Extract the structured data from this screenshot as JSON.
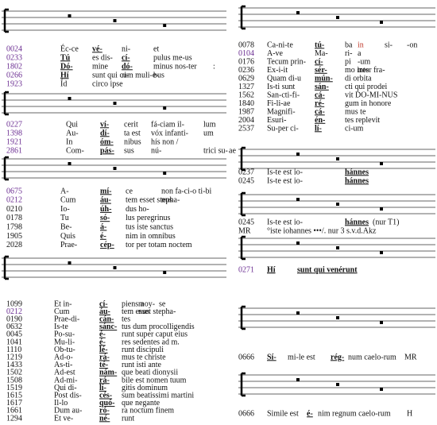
{
  "columns": [
    {
      "blocks": [
        {
          "rows": [
            {
              "num": "0024",
              "color": "#6a2c91",
              "parts": [
                "Éc-ce",
                "vé-",
                "ni-",
                "et"
              ]
            },
            {
              "num": "0233",
              "color": "#6a2c91",
              "parts": [
                "Tú",
                "es dis-",
                "cí-",
                "pulus me-us"
              ]
            },
            {
              "num": "1802",
              "color": "#6a2c91",
              "parts": [
                "Dó-",
                "mine",
                "dó-",
                "minus nos-ter",
                ":"
              ]
            },
            {
              "num": "0266",
              "color": "#6a2c91",
              "parts": [
                "Hí",
                "sunt qui cum muli-e-",
                "ri-",
                "bus"
              ]
            },
            {
              "num": "1923",
              "color": "#6a2c91",
              "parts": [
                "Íd",
                "circo ipse"
              ]
            }
          ]
        },
        {
          "rows": [
            {
              "num": "0227",
              "color": "#6a2c91",
              "parts": [
                "Qui",
                "ví-",
                "cerit",
                "fá-ciam il-",
                "lum"
              ]
            },
            {
              "num": "1398",
              "color": "#6a2c91",
              "parts": [
                "Au-",
                "dí-",
                "ta est",
                "vóx infanti-",
                "um"
              ]
            },
            {
              "num": "1921",
              "color": "#6a2c91",
              "parts": [
                "In",
                "óm-",
                "nibus",
                "hís non /"
              ]
            },
            {
              "num": "2861",
              "color": "#6a2c91",
              "parts": [
                "Com-",
                "pás-",
                "sus",
                "nú-",
                "trici su-",
                "ae"
              ]
            }
          ]
        },
        {
          "rows": [
            {
              "num": "0675",
              "color": "#6a2c91",
              "parts": [
                "A-",
                "mí-",
                "ce",
                "non fa-ci-o ti-bi"
              ]
            },
            {
              "num": "0212",
              "color": "#6a2c91",
              "parts": [
                "Cum",
                "áu-",
                "tem esset stepha-",
                "nus"
              ]
            },
            {
              "num": "0210",
              "parts": [
                "Io-",
                "úh-",
                "dus ho-"
              ]
            },
            {
              "num": "0178",
              "parts": [
                "Tu",
                "só-",
                "lus peregrinus"
              ]
            },
            {
              "num": "1798",
              "parts": [
                "Be-",
                "á-",
                "tus iste sanctus"
              ]
            },
            {
              "num": "1905",
              "parts": [
                "Quis",
                "é-",
                "nim in omnibus"
              ]
            },
            {
              "num": "2028",
              "parts": [
                "Prae-",
                "cép-",
                "tor per totam noctem"
              ]
            }
          ]
        },
        {
          "rows": [
            {
              "num": "1099",
              "parts": [
                "Et in-",
                "cí-",
                "piens a",
                "moy-",
                "se"
              ]
            },
            {
              "num": "0212",
              "color": "#6a2c91",
              "parts": [
                "Cum",
                "áu-",
                "tem esset stepha-",
                "nus"
              ]
            },
            {
              "num": "0190",
              "parts": [
                "Prae-di-",
                "cán-",
                "tes"
              ]
            },
            {
              "num": "0632",
              "parts": [
                "Is-te",
                "sánc-",
                "tus dum procolligendis"
              ]
            },
            {
              "num": "0045",
              "parts": [
                "Po-su-",
                "é-",
                "runt super caput eius"
              ]
            },
            {
              "num": "1041",
              "parts": [
                "Mu-li-",
                "é-",
                "res sedentes ad m."
              ]
            },
            {
              "num": "1110",
              "parts": [
                "Ob-tu-",
                "lé-",
                "runt discipuli"
              ]
            },
            {
              "num": "1219",
              "parts": [
                "Ad-o-",
                "rá-",
                "mus te christe"
              ]
            },
            {
              "num": "1433",
              "parts": [
                "As-ti-",
                "té-",
                "runt isti ante"
              ]
            },
            {
              "num": "1502",
              "parts": [
                "Ad-est",
                "nám-",
                "que beati dionysii"
              ]
            },
            {
              "num": "1508",
              "parts": [
                "Ad-mi-",
                "rá-",
                "bile est nomen tuum"
              ]
            },
            {
              "num": "1519",
              "parts": [
                "Qui di-",
                "lí-",
                "gitis dominum"
              ]
            },
            {
              "num": "1615",
              "parts": [
                "Post dis-",
                "cés-",
                "sum beatissimi martini"
              ]
            },
            {
              "num": "1617",
              "parts": [
                "Il-lo",
                "quó-",
                "que negante"
              ]
            },
            {
              "num": "1661",
              "parts": [
                "Dum au-",
                "ró-",
                "ra noctum finem"
              ]
            },
            {
              "num": "1294",
              "parts": [
                "Et ve-",
                "né-",
                "runt"
              ]
            }
          ]
        }
      ]
    },
    {
      "blocks": [
        {
          "rows": [
            {
              "num": "0078",
              "parts": [
                "Ca-ni-te",
                "tú-",
                "ba",
                "in",
                "si-",
                "-on"
              ]
            },
            {
              "num": "0104",
              "color": "#6a2c91",
              "parts": [
                "A-ve",
                "Ma-",
                "ri-",
                "a"
              ]
            },
            {
              "num": "0176",
              "parts": [
                "Tecum prin-",
                "cí-",
                "pi",
                "-um"
              ]
            },
            {
              "num": "0236",
              "parts": [
                "Ex-i-it",
                "sér-",
                "mo inter fra-",
                "tres"
              ]
            },
            {
              "num": "0629",
              "parts": [
                "Quam di-u",
                "mún-",
                "di orbita"
              ]
            },
            {
              "num": "1327",
              "parts": [
                "Is-ti sunt",
                "sán-",
                "cti qui prodei"
              ]
            },
            {
              "num": "1562",
              "parts": [
                "San-cti-fi-",
                "cá-",
                "vit DO-MI-NUS"
              ]
            },
            {
              "num": "1840",
              "parts": [
                "Fi-li-ae",
                "ré-",
                "gum in honore"
              ]
            },
            {
              "num": "1987",
              "parts": [
                "Magnifi-",
                "cá-",
                "mus te"
              ]
            },
            {
              "num": "2004",
              "parts": [
                "Esuri-",
                "én-",
                "tes replevit"
              ]
            },
            {
              "num": "2537",
              "parts": [
                "Su-per ci-",
                "lí-",
                "ci-um"
              ]
            }
          ]
        },
        {
          "rows": [
            {
              "num": "0237",
              "parts": [
                "Is-te est io-",
                "hánnes"
              ]
            },
            {
              "num": "0245",
              "parts": [
                "Is-te est io-",
                "hánnes"
              ]
            }
          ]
        },
        {
          "rows": [
            {
              "num": "0245",
              "parts": [
                "Is-te est io-",
                "hánnes",
                "(nur T1)"
              ]
            },
            {
              "num": "MR",
              "parts": [
                "°iste iohannes •••/. nur 3 s.v.d.Akz"
              ]
            }
          ]
        },
        {
          "rows": [
            {
              "num": "0271",
              "color": "#6a2c91",
              "parts": [
                "Hí",
                "sunt qui venérunt"
              ]
            }
          ]
        },
        {
          "rows": [
            {
              "num": "0666",
              "parts": [
                "Sí-",
                "mi-le est",
                "rég-",
                "num caelo-rum",
                "MR"
              ]
            }
          ]
        },
        {
          "rows": [
            {
              "num": "0666",
              "parts": [
                "Simile est",
                "é-",
                "nim regnum caelo-rum",
                "H"
              ]
            }
          ]
        }
      ]
    }
  ]
}
